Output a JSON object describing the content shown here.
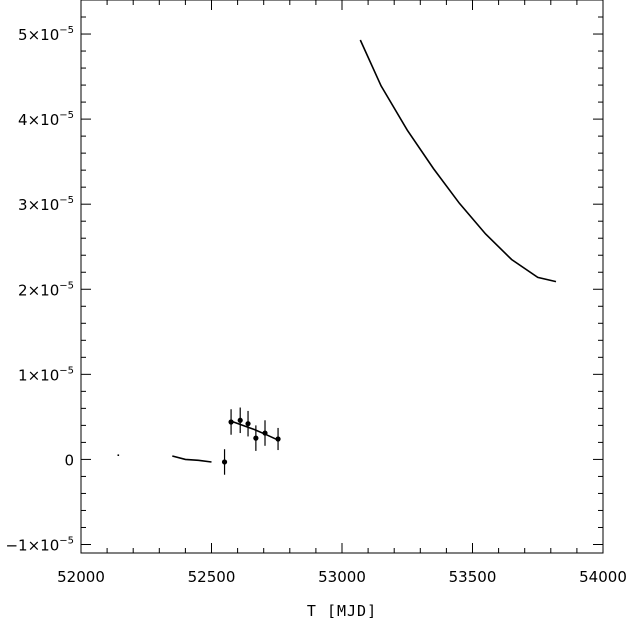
{
  "chart_data": {
    "type": "line",
    "title": "",
    "xlabel": "T [MJD]",
    "ylabel": "",
    "xlim": [
      52000,
      54000
    ],
    "ylim": [
      -1.1e-05,
      5.4e-05
    ],
    "grid": false,
    "x_ticks": [
      52000,
      52500,
      53000,
      53500,
      54000
    ],
    "x_tick_labels": [
      "52000",
      "52500",
      "53000",
      "53500",
      "54000"
    ],
    "y_ticks": [
      -1e-05,
      0,
      1e-05,
      2e-05,
      3e-05,
      4e-05,
      5e-05
    ],
    "y_tick_labels": [
      {
        "mant": "−1×10",
        "exp": "−5"
      },
      {
        "mant": "0",
        "exp": ""
      },
      {
        "mant": "1×10",
        "exp": "−5"
      },
      {
        "mant": "2×10",
        "exp": "−5"
      },
      {
        "mant": "3×10",
        "exp": "−5"
      },
      {
        "mant": "4×10",
        "exp": "−5"
      },
      {
        "mant": "5×10",
        "exp": "−5"
      }
    ],
    "series": [
      {
        "type": "line",
        "x": [
          52140,
          52146
        ],
        "y": [
          5e-07,
          5e-07
        ]
      },
      {
        "type": "line",
        "x": [
          52350,
          52400,
          52450,
          52500
        ],
        "y": [
          4e-07,
          0.0,
          -1e-07,
          -3e-07
        ]
      },
      {
        "type": "line",
        "x": [
          52575,
          52620,
          52665,
          52710,
          52760
        ],
        "y": [
          4.5e-06,
          4e-06,
          3.5e-06,
          2.9e-06,
          2.2e-06
        ]
      },
      {
        "type": "line",
        "x": [
          53070,
          53150,
          53250,
          53350,
          53450,
          53550,
          53650,
          53750,
          53820
        ],
        "y": [
          4.93e-05,
          4.39e-05,
          3.87e-05,
          3.42e-05,
          3.01e-05,
          2.65e-05,
          2.35e-05,
          2.14e-05,
          2.09e-05
        ]
      },
      {
        "type": "scatter",
        "x": [
          52550,
          52575,
          52610,
          52640,
          52670,
          52705,
          52755
        ],
        "y": [
          -3e-07,
          4.4e-06,
          4.6e-06,
          4.2e-06,
          2.5e-06,
          3.1e-06,
          2.4e-06
        ],
        "yerr": [
          1.5e-06,
          1.5e-06,
          1.5e-06,
          1.5e-06,
          1.5e-06,
          1.5e-06,
          1.3e-06
        ]
      }
    ]
  }
}
